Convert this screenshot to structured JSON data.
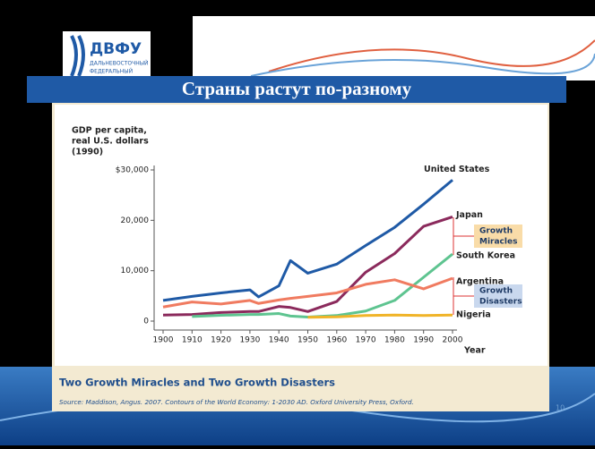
{
  "slide": {
    "title": "Страны растут по-разному",
    "logo": "ДВФУ",
    "logo_sub": [
      "ДАЛЬНЕВОСТОЧНЫЙ",
      "ФЕДЕРАЛЬНЫЙ"
    ],
    "caption": "Two Growth Miracles and Two Growth Disasters",
    "source": "Source: Maddison, Angus. 2007. Contours of the World Economy: 1-2030 AD. Oxford University Press, Oxford.",
    "page": "10"
  },
  "chart_data": {
    "type": "line",
    "y_label": [
      "GDP per capita,",
      "real U.S. dollars",
      "(1990)"
    ],
    "x_label": "Year",
    "x": [
      1900,
      1910,
      1920,
      1930,
      1933,
      1940,
      1944,
      1950,
      1960,
      1970,
      1980,
      1990,
      2000
    ],
    "series": [
      {
        "name": "United States",
        "color": "#1f5aa6",
        "values": [
          4100,
          4900,
          5600,
          6200,
          4800,
          7000,
          12000,
          9500,
          11300,
          15000,
          18600,
          23200,
          28000
        ]
      },
      {
        "name": "Japan",
        "color": "#8b2a5c",
        "values": [
          1200,
          1300,
          1700,
          1900,
          1900,
          2900,
          2700,
          1900,
          3900,
          9700,
          13400,
          18800,
          20700
        ]
      },
      {
        "name": "South Korea",
        "color": "#5ec490",
        "values": [
          null,
          900,
          1150,
          1300,
          1300,
          1500,
          1000,
          800,
          1100,
          2000,
          4100,
          8700,
          13300
        ]
      },
      {
        "name": "Argentina",
        "color": "#f07b60",
        "values": [
          2800,
          3800,
          3400,
          4100,
          3500,
          4200,
          4500,
          4900,
          5600,
          7300,
          8200,
          6400,
          8500
        ]
      },
      {
        "name": "Nigeria",
        "color": "#f0b429",
        "values": [
          null,
          null,
          null,
          null,
          null,
          null,
          null,
          750,
          850,
          1100,
          1200,
          1100,
          1200
        ]
      }
    ],
    "annotations": [
      [
        "Growth",
        "Miracles"
      ],
      [
        "Growth",
        "Disasters"
      ]
    ],
    "xlim": [
      1900,
      2000
    ],
    "xticks": [
      1900,
      1910,
      1920,
      1930,
      1940,
      1950,
      1960,
      1970,
      1980,
      1990,
      2000
    ],
    "ylim": [
      0,
      30000
    ],
    "yticks": [
      0,
      {
        "value": 10000,
        "label": "10,000"
      },
      {
        "value": 20000,
        "label": "20,000"
      },
      {
        "value": 30000,
        "label": "$30,000"
      }
    ]
  }
}
